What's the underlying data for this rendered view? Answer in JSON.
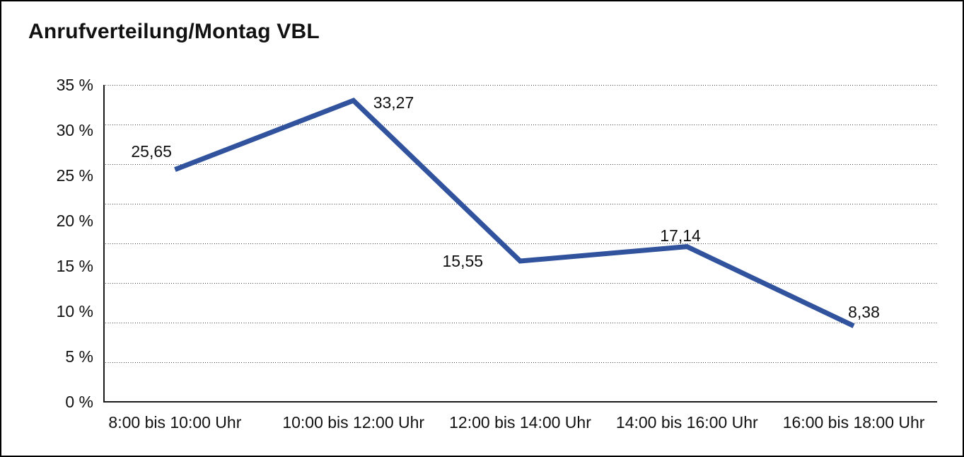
{
  "page": {
    "background": "#ffffff",
    "frame_border_color": "#000000"
  },
  "chart_data": {
    "type": "line",
    "title": "Anrufverteilung/Montag VBL",
    "categories": [
      "8:00 bis 10:00 Uhr",
      "10:00 bis 12:00 Uhr",
      "12:00 bis 14:00 Uhr",
      "14:00 bis 16:00 Uhr",
      "16:00 bis 18:00 Uhr"
    ],
    "values": [
      25.65,
      33.27,
      15.55,
      17.14,
      8.38
    ],
    "value_labels": [
      "25,65",
      "33,27",
      "15,55",
      "17,14",
      "8,38"
    ],
    "y_tick_labels": [
      "35 %",
      "30 %",
      "25 %",
      "20 %",
      "15 %",
      "10 %",
      "5 %",
      "0 %"
    ],
    "ylim": [
      0,
      35
    ],
    "xlabel": "",
    "ylabel": "",
    "legend": "none",
    "grid": "horizontal-dotted",
    "gridline_count": 9,
    "line_color": "#31539e",
    "axis_color": "#1a1a1a",
    "text_color": "#111111"
  }
}
